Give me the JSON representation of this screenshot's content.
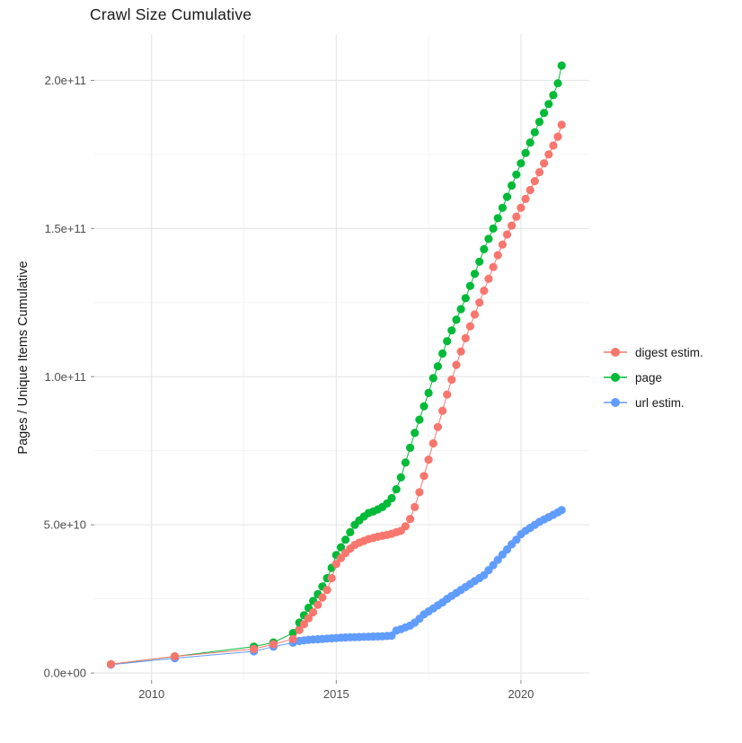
{
  "title": "Crawl Size Cumulative",
  "y_axis_title": "Pages / Unique Items Cumulative",
  "legend": {
    "position": "right",
    "items": [
      {
        "label": "digest estim.",
        "color": "#F8766D"
      },
      {
        "label": "page",
        "color": "#00BA38"
      },
      {
        "label": "url estim.",
        "color": "#619CFF"
      }
    ]
  },
  "chart_data": {
    "type": "scatter",
    "title": "Crawl Size Cumulative",
    "xlabel": "",
    "ylabel": "Pages / Unique Items Cumulative",
    "grid": true,
    "legend_position": "right",
    "x_range": [
      2008.45,
      2021.85
    ],
    "y_range": [
      -2400000000.0,
      215600000000.0
    ],
    "x_ticks": [
      {
        "value": 2010,
        "label": "2010"
      },
      {
        "value": 2015,
        "label": "2015"
      },
      {
        "value": 2020,
        "label": "2020"
      }
    ],
    "x_minor": [
      2012.5,
      2017.5
    ],
    "y_ticks": [
      {
        "value": 0,
        "label": "0.0e+00"
      },
      {
        "value": 50000000000.0,
        "label": "5.0e+10"
      },
      {
        "value": 100000000000.0,
        "label": "1.0e+11"
      },
      {
        "value": 150000000000.0,
        "label": "1.5e+11"
      },
      {
        "value": 200000000000.0,
        "label": "2.0e+11"
      }
    ],
    "y_minor": [
      25000000000.0,
      75000000000.0,
      125000000000.0,
      175000000000.0
    ],
    "series": [
      {
        "name": "page",
        "key": "page",
        "color": "#00BA38",
        "points": [
          [
            2008.9,
            2900000000.0
          ],
          [
            2010.63,
            5600000000.0
          ],
          [
            2012.77,
            8900000000.0
          ],
          [
            2013.3,
            10300000000.0
          ],
          [
            2013.83,
            13500000000.0
          ],
          [
            2014.0,
            17000000000.0
          ],
          [
            2014.125,
            19500000000.0
          ],
          [
            2014.25,
            22000000000.0
          ],
          [
            2014.375,
            24300000000.0
          ],
          [
            2014.5,
            26600000000.0
          ],
          [
            2014.625,
            29200000000.0
          ],
          [
            2014.75,
            32000000000.0
          ],
          [
            2014.875,
            35500000000.0
          ],
          [
            2015.0,
            39800000000.0
          ],
          [
            2015.125,
            42400000000.0
          ],
          [
            2015.25,
            45000000000.0
          ],
          [
            2015.375,
            47500000000.0
          ],
          [
            2015.5,
            50000000000.0
          ],
          [
            2015.625,
            51500000000.0
          ],
          [
            2015.75,
            52800000000.0
          ],
          [
            2015.875,
            54000000000.0
          ],
          [
            2016.0,
            54500000000.0
          ],
          [
            2016.125,
            55200000000.0
          ],
          [
            2016.25,
            56000000000.0
          ],
          [
            2016.375,
            57200000000.0
          ],
          [
            2016.5,
            59000000000.0
          ],
          [
            2016.625,
            62000000000.0
          ],
          [
            2016.75,
            66000000000.0
          ],
          [
            2016.875,
            71000000000.0
          ],
          [
            2017.0,
            76000000000.0
          ],
          [
            2017.125,
            81000000000.0
          ],
          [
            2017.25,
            85500000000.0
          ],
          [
            2017.375,
            90000000000.0
          ],
          [
            2017.5,
            94500000000.0
          ],
          [
            2017.625,
            99500000000.0
          ],
          [
            2017.75,
            103500000000.0
          ],
          [
            2017.875,
            107800000000.0
          ],
          [
            2018.0,
            112000000000.0
          ],
          [
            2018.125,
            115600000000.0
          ],
          [
            2018.25,
            119200000000.0
          ],
          [
            2018.375,
            122800000000.0
          ],
          [
            2018.5,
            126500000000.0
          ],
          [
            2018.625,
            130600000000.0
          ],
          [
            2018.75,
            134700000000.0
          ],
          [
            2018.875,
            138800000000.0
          ],
          [
            2019.0,
            143000000000.0
          ],
          [
            2019.125,
            146500000000.0
          ],
          [
            2019.25,
            150000000000.0
          ],
          [
            2019.375,
            153500000000.0
          ],
          [
            2019.5,
            157000000000.0
          ],
          [
            2019.625,
            160700000000.0
          ],
          [
            2019.75,
            164500000000.0
          ],
          [
            2019.875,
            168200000000.0
          ],
          [
            2020.0,
            172000000000.0
          ],
          [
            2020.125,
            175500000000.0
          ],
          [
            2020.25,
            179000000000.0
          ],
          [
            2020.375,
            182500000000.0
          ],
          [
            2020.5,
            186000000000.0
          ],
          [
            2020.625,
            189000000000.0
          ],
          [
            2020.75,
            192000000000.0
          ],
          [
            2020.875,
            195000000000.0
          ],
          [
            2021.0,
            199000000000.0
          ],
          [
            2021.1,
            205000000000.0
          ]
        ]
      },
      {
        "name": "url estim.",
        "key": "url-estim",
        "color": "#619CFF",
        "points": [
          [
            2008.9,
            2800000000.0
          ],
          [
            2010.63,
            5000000000.0
          ],
          [
            2012.77,
            7300000000.0
          ],
          [
            2013.3,
            8900000000.0
          ],
          [
            2013.83,
            10200000000.0
          ],
          [
            2014.0,
            10800000000.0
          ],
          [
            2014.125,
            11000000000.0
          ],
          [
            2014.25,
            11200000000.0
          ],
          [
            2014.375,
            11300000000.0
          ],
          [
            2014.5,
            11400000000.0
          ],
          [
            2014.625,
            11500000000.0
          ],
          [
            2014.75,
            11600000000.0
          ],
          [
            2014.875,
            11700000000.0
          ],
          [
            2015.0,
            11800000000.0
          ],
          [
            2015.125,
            11900000000.0
          ],
          [
            2015.25,
            12000000000.0
          ],
          [
            2015.375,
            12050000000.0
          ],
          [
            2015.5,
            12100000000.0
          ],
          [
            2015.625,
            12150000000.0
          ],
          [
            2015.75,
            12200000000.0
          ],
          [
            2015.875,
            12250000000.0
          ],
          [
            2016.0,
            12300000000.0
          ],
          [
            2016.125,
            12350000000.0
          ],
          [
            2016.25,
            12400000000.0
          ],
          [
            2016.375,
            12500000000.0
          ],
          [
            2016.5,
            12600000000.0
          ],
          [
            2016.625,
            14300000000.0
          ],
          [
            2016.75,
            14800000000.0
          ],
          [
            2016.875,
            15400000000.0
          ],
          [
            2017.0,
            16000000000.0
          ],
          [
            2017.125,
            17000000000.0
          ],
          [
            2017.25,
            18300000000.0
          ],
          [
            2017.375,
            19800000000.0
          ],
          [
            2017.5,
            20800000000.0
          ],
          [
            2017.625,
            21800000000.0
          ],
          [
            2017.75,
            22800000000.0
          ],
          [
            2017.875,
            23800000000.0
          ],
          [
            2018.0,
            25000000000.0
          ],
          [
            2018.125,
            26000000000.0
          ],
          [
            2018.25,
            27000000000.0
          ],
          [
            2018.375,
            28000000000.0
          ],
          [
            2018.5,
            29000000000.0
          ],
          [
            2018.625,
            30000000000.0
          ],
          [
            2018.75,
            31000000000.0
          ],
          [
            2018.875,
            32000000000.0
          ],
          [
            2019.0,
            33000000000.0
          ],
          [
            2019.125,
            34700000000.0
          ],
          [
            2019.25,
            36400000000.0
          ],
          [
            2019.375,
            38200000000.0
          ],
          [
            2019.5,
            40000000000.0
          ],
          [
            2019.625,
            41700000000.0
          ],
          [
            2019.75,
            43400000000.0
          ],
          [
            2019.875,
            45000000000.0
          ],
          [
            2020.0,
            46800000000.0
          ],
          [
            2020.125,
            48000000000.0
          ],
          [
            2020.25,
            49000000000.0
          ],
          [
            2020.375,
            50000000000.0
          ],
          [
            2020.5,
            51000000000.0
          ],
          [
            2020.625,
            51800000000.0
          ],
          [
            2020.75,
            52600000000.0
          ],
          [
            2020.875,
            53400000000.0
          ],
          [
            2021.0,
            54200000000.0
          ],
          [
            2021.1,
            55000000000.0
          ]
        ]
      },
      {
        "name": "digest estim.",
        "key": "digest-estim",
        "color": "#F8766D",
        "points": [
          [
            2008.9,
            3000000000.0
          ],
          [
            2010.63,
            5600000000.0
          ],
          [
            2012.77,
            8100000000.0
          ],
          [
            2013.3,
            9700000000.0
          ],
          [
            2013.83,
            11500000000.0
          ],
          [
            2014.0,
            14500000000.0
          ],
          [
            2014.125,
            16500000000.0
          ],
          [
            2014.25,
            18500000000.0
          ],
          [
            2014.375,
            20500000000.0
          ],
          [
            2014.5,
            23000000000.0
          ],
          [
            2014.625,
            25500000000.0
          ],
          [
            2014.75,
            28000000000.0
          ],
          [
            2014.875,
            32000000000.0
          ],
          [
            2015.0,
            36800000000.0
          ],
          [
            2015.125,
            38800000000.0
          ],
          [
            2015.25,
            40500000000.0
          ],
          [
            2015.375,
            42000000000.0
          ],
          [
            2015.5,
            43200000000.0
          ],
          [
            2015.625,
            44000000000.0
          ],
          [
            2015.75,
            44600000000.0
          ],
          [
            2015.875,
            45200000000.0
          ],
          [
            2016.0,
            45600000000.0
          ],
          [
            2016.125,
            46000000000.0
          ],
          [
            2016.25,
            46300000000.0
          ],
          [
            2016.375,
            46600000000.0
          ],
          [
            2016.5,
            47000000000.0
          ],
          [
            2016.625,
            47500000000.0
          ],
          [
            2016.75,
            48000000000.0
          ],
          [
            2016.875,
            49500000000.0
          ],
          [
            2017.0,
            52000000000.0
          ],
          [
            2017.125,
            56000000000.0
          ],
          [
            2017.25,
            61000000000.0
          ],
          [
            2017.375,
            66500000000.0
          ],
          [
            2017.5,
            72000000000.0
          ],
          [
            2017.625,
            77500000000.0
          ],
          [
            2017.75,
            83000000000.0
          ],
          [
            2017.875,
            88500000000.0
          ],
          [
            2018.0,
            94000000000.0
          ],
          [
            2018.125,
            99000000000.0
          ],
          [
            2018.25,
            104000000000.0
          ],
          [
            2018.375,
            108500000000.0
          ],
          [
            2018.5,
            113000000000.0
          ],
          [
            2018.625,
            117000000000.0
          ],
          [
            2018.75,
            121000000000.0
          ],
          [
            2018.875,
            125000000000.0
          ],
          [
            2019.0,
            129000000000.0
          ],
          [
            2019.125,
            133000000000.0
          ],
          [
            2019.25,
            137000000000.0
          ],
          [
            2019.375,
            141000000000.0
          ],
          [
            2019.5,
            144600000000.0
          ],
          [
            2019.625,
            148000000000.0
          ],
          [
            2019.75,
            151000000000.0
          ],
          [
            2019.875,
            154000000000.0
          ],
          [
            2020.0,
            157000000000.0
          ],
          [
            2020.125,
            160000000000.0
          ],
          [
            2020.25,
            163000000000.0
          ],
          [
            2020.375,
            166000000000.0
          ],
          [
            2020.5,
            169000000000.0
          ],
          [
            2020.625,
            172000000000.0
          ],
          [
            2020.75,
            175000000000.0
          ],
          [
            2020.875,
            178000000000.0
          ],
          [
            2021.0,
            181000000000.0
          ],
          [
            2021.1,
            185000000000.0
          ]
        ]
      }
    ]
  }
}
